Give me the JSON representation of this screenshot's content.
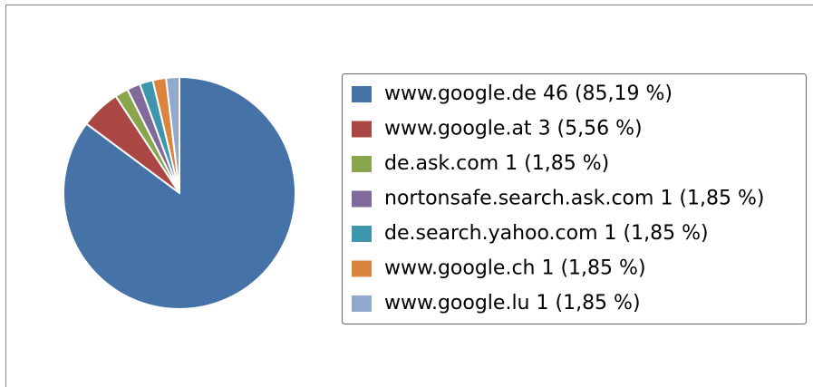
{
  "chart_data": {
    "type": "pie",
    "categories": [
      "www.google.de",
      "www.google.at",
      "de.ask.com",
      "nortonsafe.search.ask.com",
      "de.search.yahoo.com",
      "www.google.ch",
      "www.google.lu"
    ],
    "values": [
      46,
      3,
      1,
      1,
      1,
      1,
      1
    ],
    "value_labels": [
      "46 (85,19 %)",
      "3 (5,56 %)",
      "1 (1,85 %)",
      "1 (1,85 %)",
      "1 (1,85 %)",
      "1 (1,85 %)",
      "1 (1,85 %)"
    ],
    "colors": [
      "#4572a7",
      "#aa4643",
      "#89a54e",
      "#80699b",
      "#3d96ae",
      "#db843d",
      "#92a8cd"
    ],
    "legend": "right"
  }
}
